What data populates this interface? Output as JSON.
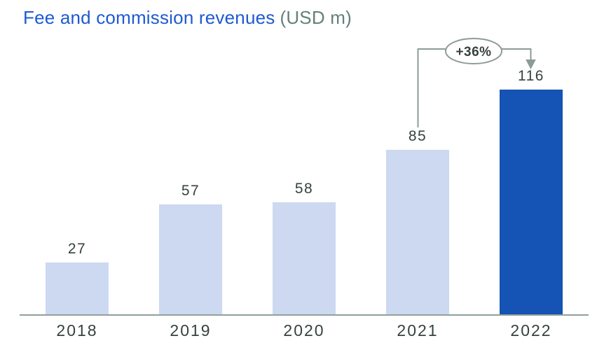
{
  "header": {
    "title": "Fee and commission revenues",
    "unit": "(USD m)"
  },
  "chart_data": {
    "type": "bar",
    "title": "Fee and commission revenues",
    "unit_label": "(USD m)",
    "categories": [
      "2018",
      "2019",
      "2020",
      "2021",
      "2022"
    ],
    "values": [
      27,
      57,
      58,
      85,
      116
    ],
    "value_labels": [
      "27",
      "57",
      "58",
      "85",
      "116"
    ],
    "highlight_index": 4,
    "annotation": {
      "label": "+36%",
      "from_category": "2021",
      "to_category": "2022"
    },
    "axis": {
      "ylim": [
        0,
        130
      ],
      "gridlines": false,
      "y_axis_visible": false,
      "x_axis_visible": true,
      "legend": "none"
    },
    "colors": {
      "bar_default": "#cdd9f1",
      "bar_highlight": "#1553b4",
      "title_blue": "#1e5ad2",
      "unit_gray": "#64807b",
      "label_dark": "#36423c",
      "axis_line": "#8fa09b",
      "annotation_line": "#8c9b96",
      "annotation_fill": "#ffffff"
    }
  }
}
